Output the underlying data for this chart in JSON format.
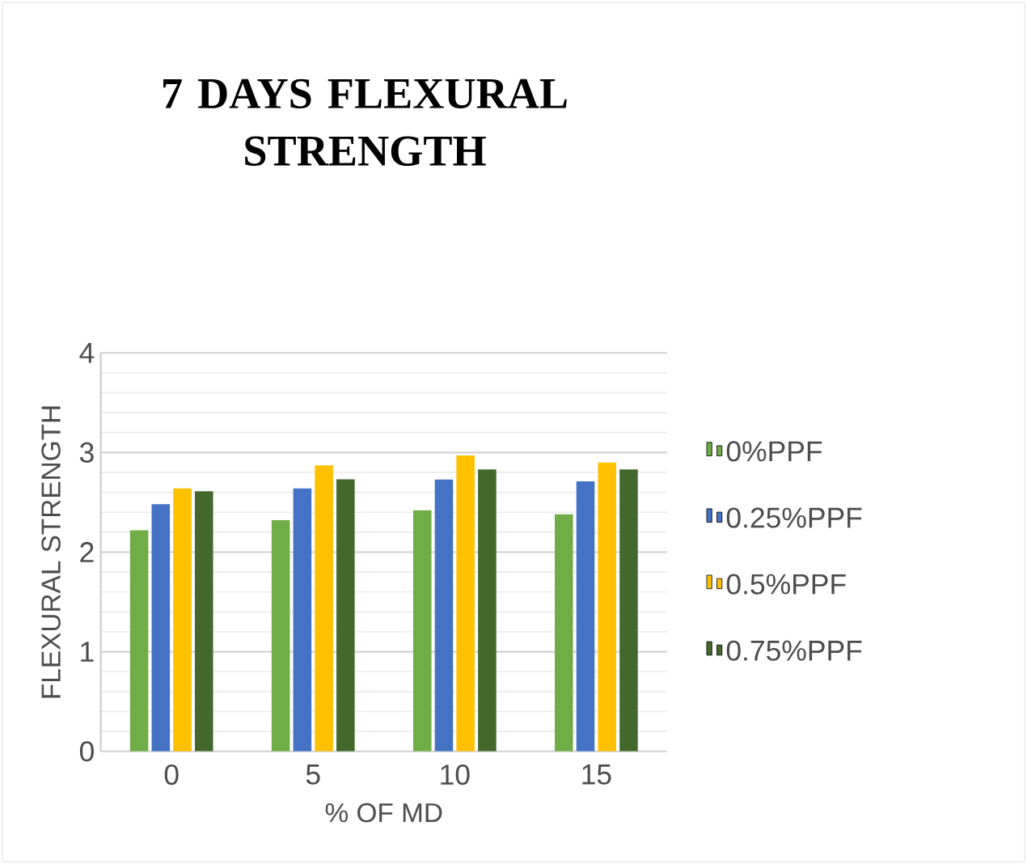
{
  "chart_data": {
    "type": "bar",
    "title": "7 DAYS FLEXURAL STRENGTH",
    "xlabel": "% OF MD",
    "ylabel": "FLEXURAL STRENGTH",
    "categories": [
      "0",
      "5",
      "10",
      "15"
    ],
    "series": [
      {
        "name": "0%PPF",
        "color": "#70ad47",
        "values": [
          2.22,
          2.32,
          2.42,
          2.38
        ]
      },
      {
        "name": "0.25%PPF",
        "color": "#4472c4",
        "values": [
          2.48,
          2.64,
          2.73,
          2.71
        ]
      },
      {
        "name": "0.5%PPF",
        "color": "#ffc000",
        "values": [
          2.64,
          2.87,
          2.97,
          2.9
        ]
      },
      {
        "name": "0.75%PPF",
        "color": "#43682b",
        "values": [
          2.61,
          2.73,
          2.83,
          2.83
        ]
      }
    ],
    "ylim": [
      0,
      4
    ],
    "yticks": [
      0,
      1,
      2,
      3,
      4
    ],
    "grid": "y",
    "legend": "right"
  }
}
